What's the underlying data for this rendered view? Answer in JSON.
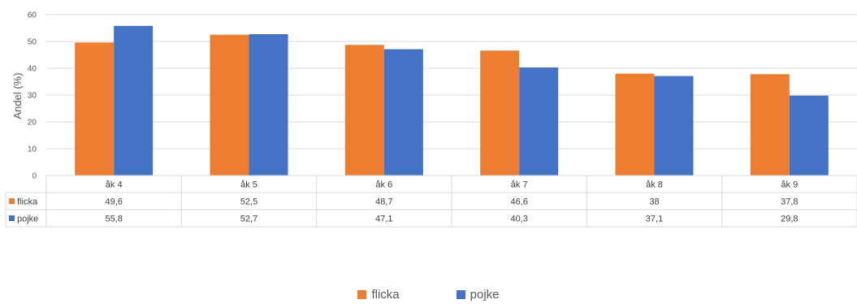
{
  "chart_data": {
    "type": "bar",
    "categories": [
      "åk 4",
      "åk 5",
      "åk 6",
      "åk 7",
      "åk 8",
      "åk 9"
    ],
    "series": [
      {
        "name": "flicka",
        "color": "#ED7D31",
        "values": [
          49.6,
          52.5,
          48.7,
          46.6,
          38,
          37.8
        ],
        "labels": [
          "49,6",
          "52,5",
          "48,7",
          "46,6",
          "38",
          "37,8"
        ]
      },
      {
        "name": "pojke",
        "color": "#4472C4",
        "values": [
          55.8,
          52.7,
          47.1,
          40.3,
          37.1,
          29.8
        ],
        "labels": [
          "55,8",
          "52,7",
          "47,1",
          "40,3",
          "37,1",
          "29,8"
        ]
      }
    ],
    "ylabel": "Andel (%)",
    "ylim": [
      0,
      60
    ],
    "yticks": [
      0,
      10,
      20,
      30,
      40,
      50,
      60
    ],
    "grid": true,
    "data_table": true,
    "legend_position": "bottom"
  }
}
